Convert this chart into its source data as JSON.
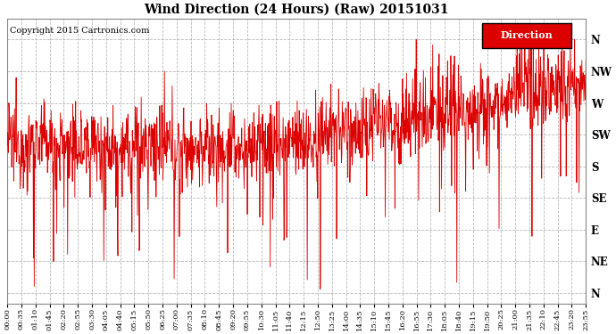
{
  "title": "Wind Direction (24 Hours) (Raw) 20151031",
  "copyright_text": "Copyright 2015 Cartronics.com",
  "legend_label": "Direction",
  "legend_bg": "#dd0000",
  "legend_text_color": "#ffffff",
  "line_color": "#dd0000",
  "background_color": "#ffffff",
  "grid_color": "#999999",
  "y_labels": [
    "N",
    "NW",
    "W",
    "SW",
    "S",
    "SE",
    "E",
    "NE",
    "N"
  ],
  "ytick_positions": [
    360,
    315,
    270,
    225,
    180,
    135,
    90,
    45,
    0
  ],
  "ylim": [
    -15,
    390
  ],
  "x_tick_labels": [
    "00:00",
    "00:35",
    "01:10",
    "01:45",
    "02:20",
    "02:55",
    "03:30",
    "04:05",
    "04:40",
    "05:15",
    "05:50",
    "06:25",
    "07:00",
    "07:35",
    "08:10",
    "08:45",
    "09:20",
    "09:55",
    "10:30",
    "11:05",
    "11:40",
    "12:15",
    "12:50",
    "13:25",
    "14:00",
    "14:35",
    "15:10",
    "15:45",
    "16:20",
    "16:55",
    "17:30",
    "18:05",
    "18:40",
    "19:15",
    "19:50",
    "20:25",
    "21:00",
    "21:35",
    "22:10",
    "22:45",
    "23:20",
    "23:55"
  ],
  "figsize": [
    6.9,
    3.75
  ],
  "dpi": 100
}
